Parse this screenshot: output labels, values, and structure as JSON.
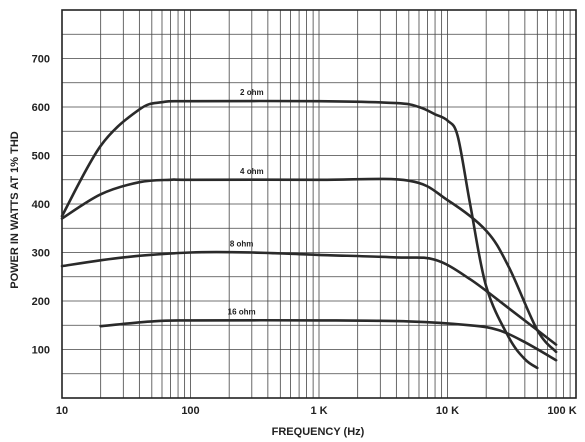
{
  "chart_data": {
    "type": "line",
    "title": "",
    "xlabel": "FREQUENCY (Hz)",
    "ylabel": "POWER IN WATTS AT 1% THD",
    "x_scale": "log",
    "xlim": [
      10,
      100000
    ],
    "ylim": [
      0,
      800
    ],
    "grid": true,
    "x_ticks": [
      {
        "value": 10,
        "label": "10"
      },
      {
        "value": 100,
        "label": "100"
      },
      {
        "value": 1000,
        "label": "1 K"
      },
      {
        "value": 10000,
        "label": "10 K"
      },
      {
        "value": 100000,
        "label": "100 K"
      }
    ],
    "y_ticks": [
      {
        "value": 100,
        "label": "100"
      },
      {
        "value": 200,
        "label": "200"
      },
      {
        "value": 300,
        "label": "300"
      },
      {
        "value": 400,
        "label": "400"
      },
      {
        "value": 500,
        "label": "500"
      },
      {
        "value": 600,
        "label": "600"
      },
      {
        "value": 700,
        "label": "700"
      }
    ],
    "series": [
      {
        "name": "2 ohm",
        "points": [
          [
            10,
            375
          ],
          [
            20,
            520
          ],
          [
            40,
            595
          ],
          [
            60,
            610
          ],
          [
            100,
            612
          ],
          [
            1000,
            612
          ],
          [
            4000,
            608
          ],
          [
            6000,
            600
          ],
          [
            8000,
            585
          ],
          [
            10000,
            572
          ],
          [
            12000,
            540
          ],
          [
            15000,
            400
          ],
          [
            20000,
            230
          ],
          [
            30000,
            125
          ],
          [
            40000,
            80
          ],
          [
            50000,
            62
          ]
        ]
      },
      {
        "name": "4 ohm",
        "points": [
          [
            10,
            370
          ],
          [
            20,
            420
          ],
          [
            40,
            445
          ],
          [
            70,
            450
          ],
          [
            100,
            450
          ],
          [
            1000,
            450
          ],
          [
            5000,
            448
          ],
          [
            10000,
            408
          ],
          [
            20000,
            345
          ],
          [
            30000,
            270
          ],
          [
            50000,
            140
          ],
          [
            70000,
            95
          ]
        ]
      },
      {
        "name": "8 ohm",
        "points": [
          [
            10,
            272
          ],
          [
            30,
            290
          ],
          [
            100,
            300
          ],
          [
            300,
            300
          ],
          [
            1000,
            295
          ],
          [
            4000,
            290
          ],
          [
            8000,
            285
          ],
          [
            15000,
            245
          ],
          [
            30000,
            185
          ],
          [
            50000,
            140
          ],
          [
            70000,
            110
          ]
        ]
      },
      {
        "name": "16 ohm",
        "points": [
          [
            20,
            148
          ],
          [
            50,
            158
          ],
          [
            100,
            160
          ],
          [
            1000,
            160
          ],
          [
            5000,
            158
          ],
          [
            15000,
            150
          ],
          [
            25000,
            140
          ],
          [
            40000,
            115
          ],
          [
            70000,
            78
          ]
        ]
      }
    ]
  }
}
